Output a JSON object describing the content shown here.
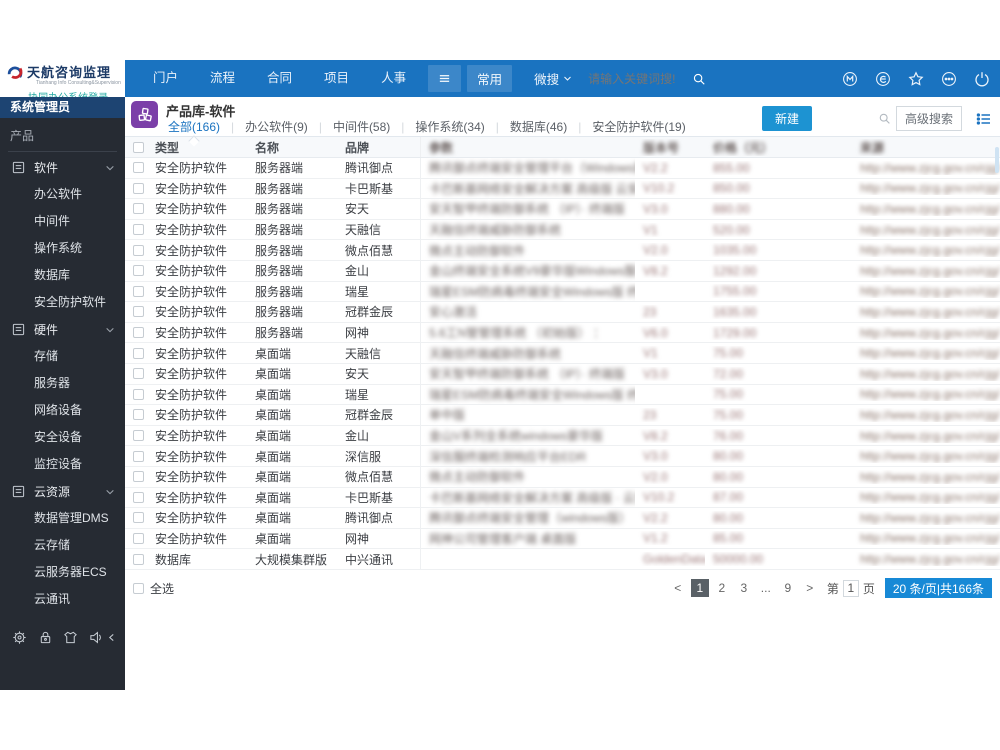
{
  "colors": {
    "topbar": "#1a73c0",
    "sidebar": "#262b33",
    "role_bar": "#1d4472",
    "accent": "#1a73c0",
    "new_button": "#1d93d2",
    "app_icon": "#7b3fa8",
    "login_link": "#21a8a2",
    "badge": "#1789d6"
  },
  "logo": {
    "title": "天航咨询监理",
    "subtitle": "Tianhang Info Consulting&Supervision",
    "login_link": "· 协同办公系统登录"
  },
  "topnav": {
    "items": [
      "门户",
      "流程",
      "合同",
      "项目",
      "人事"
    ],
    "more_icon": "hamburger-icon",
    "pinned": "常用",
    "wesearch": "微搜",
    "search_placeholder": "请输入关键词搜!",
    "right_icons": [
      "m-circle-icon",
      "e-circle-icon",
      "star-icon",
      "more-circle-icon",
      "power-icon"
    ]
  },
  "sidebar": {
    "role": "系统管理员",
    "section": "产品",
    "groups": [
      {
        "label": "软件",
        "icon": "panel-icon",
        "chevron": "chevron-down-icon",
        "children": [
          "办公软件",
          "中间件",
          "操作系统",
          "数据库",
          "安全防护软件"
        ]
      },
      {
        "label": "硬件",
        "icon": "panel-icon",
        "chevron": "chevron-down-icon",
        "children": [
          "存储",
          "服务器",
          "网络设备",
          "安全设备",
          "监控设备"
        ]
      },
      {
        "label": "云资源",
        "icon": "panel-icon",
        "chevron": "chevron-down-icon",
        "children": [
          "数据管理DMS",
          "云存储",
          "云服务器ECS",
          "云通讯"
        ]
      }
    ],
    "foot_icons": [
      "gear-icon",
      "lock-icon",
      "theme-shirt-icon",
      "speaker-icon",
      "collapse-arrow-icon"
    ]
  },
  "content": {
    "title": "产品库-软件",
    "tabs": [
      {
        "label": "全部(166)",
        "active": true
      },
      {
        "label": "办公软件(9)",
        "active": false
      },
      {
        "label": "中间件(58)",
        "active": false
      },
      {
        "label": "操作系统(34)",
        "active": false
      },
      {
        "label": "数据库(46)",
        "active": false
      },
      {
        "label": "安全防护软件(19)",
        "active": false
      }
    ],
    "new_button": "新建",
    "advanced_search": "高级搜索",
    "table": {
      "columns": [
        "类型",
        "名称",
        "品牌"
      ],
      "blurred_columns": [
        "参数",
        "版本号",
        "价格（元）",
        "来源"
      ],
      "blurred_note": "columns 4-7 are blurred/unreadable in source",
      "source_url": "http://www.zjcg.gov.cn/cjg/",
      "rows": [
        {
          "type": "安全防护软件",
          "name": "服务器端",
          "brand": "腾讯御点",
          "desc": "腾讯御点终端安全管理平台（Windows版）",
          "version": "V2.2",
          "price": "855.00"
        },
        {
          "type": "安全防护软件",
          "name": "服务器端",
          "brand": "卡巴斯基",
          "desc": "卡巴斯基网络安全解决方案 高级版 云安全版",
          "version": "V10.2",
          "price": "850.00"
        },
        {
          "type": "安全防护软件",
          "name": "服务器端",
          "brand": "安天",
          "desc": "安天智甲终端防御系统 （IP）· 终端版",
          "version": "V3.0",
          "price": "880.00"
        },
        {
          "type": "安全防护软件",
          "name": "服务器端",
          "brand": "天融信",
          "desc": "天融信终端威胁防御系统",
          "version": "V1",
          "price": "520.00"
        },
        {
          "type": "安全防护软件",
          "name": "服务器端",
          "brand": "微点佰慧",
          "desc": "微点主动防御软件",
          "version": "V2.0",
          "price": "1035.00"
        },
        {
          "type": "安全防护软件",
          "name": "服务器端",
          "brand": "金山",
          "desc": "金山终端安全系统V9豪华版Windows服务器",
          "version": "V8.2",
          "price": "1292.00"
        },
        {
          "type": "安全防护软件",
          "name": "服务器端",
          "brand": "瑞星",
          "desc": "瑞星ESM防病毒终端安全Windows版 终端",
          "version": "",
          "price": "1755.00"
        },
        {
          "type": "安全防护软件",
          "name": "服务器端",
          "brand": "冠群金辰",
          "desc": "安心激活",
          "version": "23",
          "price": "1635.00"
        },
        {
          "type": "安全防护软件",
          "name": "服务器端",
          "brand": "网神",
          "desc": "5.6工N管管理系统 （初始版） ：",
          "version": "V6.0",
          "price": "1729.00"
        },
        {
          "type": "安全防护软件",
          "name": "桌面端",
          "brand": "天融信",
          "desc": "天融信终端威胁防御系统",
          "version": "V1",
          "price": "75.00"
        },
        {
          "type": "安全防护软件",
          "name": "桌面端",
          "brand": "安天",
          "desc": "安天智甲终端防御系统 （IP）· 终端版",
          "version": "V3.0",
          "price": "72.00"
        },
        {
          "type": "安全防护软件",
          "name": "桌面端",
          "brand": "瑞星",
          "desc": "瑞星ESM防病毒终端安全Windows版 终端",
          "version": "",
          "price": "75.00"
        },
        {
          "type": "安全防护软件",
          "name": "桌面端",
          "brand": "冠群金辰",
          "desc": "单中版",
          "version": "23",
          "price": "75.00"
        },
        {
          "type": "安全防护软件",
          "name": "桌面端",
          "brand": "金山",
          "desc": "金山V系列全系统windows豪华版",
          "version": "V8.2",
          "price": "76.00"
        },
        {
          "type": "安全防护软件",
          "name": "桌面端",
          "brand": "深信服",
          "desc": "深信服终端检测响应平台EDR",
          "version": "V3.0",
          "price": "80.00"
        },
        {
          "type": "安全防护软件",
          "name": "桌面端",
          "brand": "微点佰慧",
          "desc": "微点主动防御软件",
          "version": "V2.0",
          "price": "80.00"
        },
        {
          "type": "安全防护软件",
          "name": "桌面端",
          "brand": "卡巴斯基",
          "desc": "卡巴斯基网络安全解决方案 高级版 · 云安全",
          "version": "V10.2",
          "price": "87.00"
        },
        {
          "type": "安全防护软件",
          "name": "桌面端",
          "brand": "腾讯御点",
          "desc": "腾讯御点终端安全管理（windows版）",
          "version": "V2.2",
          "price": "80.00"
        },
        {
          "type": "安全防护软件",
          "name": "桌面端",
          "brand": "网神",
          "desc": "网神公司管理客户端 桌面版",
          "version": "V1.2",
          "price": "85.00"
        },
        {
          "type": "数据库",
          "name": "大规模集群版",
          "brand": "中兴通讯",
          "desc": "",
          "version": "GoldenData s...",
          "price": "50000.00"
        }
      ]
    },
    "select_all": "全选",
    "pagination": {
      "prev": "<",
      "next": ">",
      "pages": [
        "1",
        "2",
        "3",
        "...",
        "9"
      ],
      "current": "1",
      "jump_prefix": "第",
      "jump_value": "1",
      "jump_suffix": "页",
      "summary": "20 条/页|共166条"
    }
  }
}
